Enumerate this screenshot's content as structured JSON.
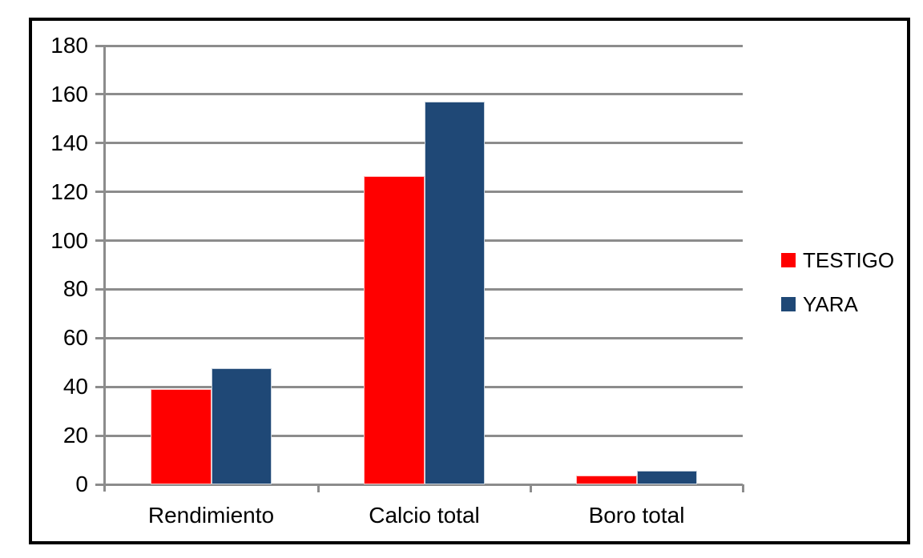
{
  "chart_data": {
    "type": "bar",
    "title": "",
    "categories": [
      "Rendimiento",
      "Calcio total",
      "Boro total"
    ],
    "series": [
      {
        "name": "TESTIGO",
        "color": "#FF0000",
        "values": [
          39,
          126.5,
          3.6
        ]
      },
      {
        "name": "YARA",
        "color": "#1F4876",
        "values": [
          47.5,
          157,
          5.5
        ]
      }
    ],
    "xlabel": "",
    "ylabel": "",
    "ylim": [
      0,
      180
    ],
    "ytick_step": 20,
    "yticks": [
      0,
      20,
      40,
      60,
      80,
      100,
      120,
      140,
      160,
      180
    ],
    "grid": "horizontal",
    "legend_position": "right",
    "colors": {
      "gridline": "#8C8C8C",
      "axis": "#8C8C8C",
      "text": "#000000",
      "frame_border": "#000000",
      "background": "#FFFFFF"
    }
  }
}
